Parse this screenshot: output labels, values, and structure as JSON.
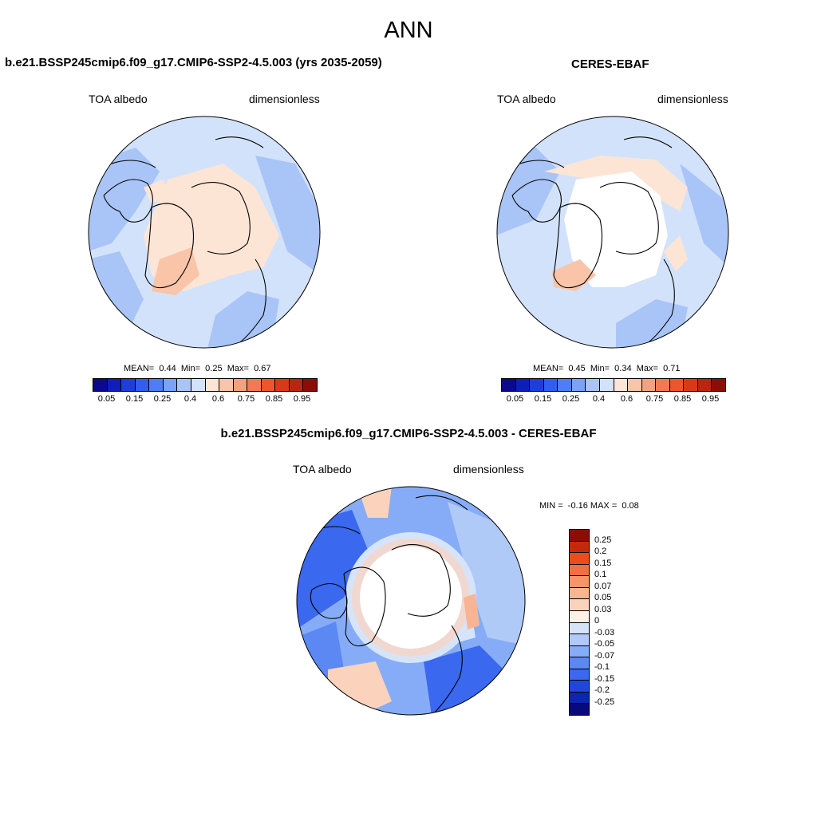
{
  "figure_title": "ANN",
  "panels": {
    "model": {
      "title": "b.e21.BSSP245cmip6.f09_g17.CMIP6-SSP2-4.5.003 (yrs 2035-2059)",
      "variable": "TOA albedo",
      "units": "dimensionless",
      "mean_label": "MEAN=",
      "mean": "0.44",
      "min_label": "Min=",
      "min": "0.25",
      "max_label": "Max=",
      "max": "0.67"
    },
    "obs": {
      "title": "CERES-EBAF",
      "variable": "TOA albedo",
      "units": "dimensionless",
      "mean_label": "MEAN=",
      "mean": "0.45",
      "min_label": "Min=",
      "min": "0.34",
      "max_label": "Max=",
      "max": "0.71"
    },
    "diff": {
      "title": "b.e21.BSSP245cmip6.f09_g17.CMIP6-SSP2-4.5.003 - CERES-EBAF",
      "variable": "TOA albedo",
      "units": "dimensionless",
      "min_label": "MIN =",
      "min": "-0.16",
      "max_label": "MAX =",
      "max": "0.08"
    }
  },
  "colorbar_top": {
    "colors": [
      "#0a0a8a",
      "#0c1fb8",
      "#1b3fd8",
      "#2f5ef0",
      "#4e7ef5",
      "#7aa2f5",
      "#a9c4f6",
      "#d2e2fa",
      "#fde5d6",
      "#f9c4a8",
      "#f5a17c",
      "#f27a52",
      "#ee5529",
      "#d93a16",
      "#b8260e",
      "#8a0e06"
    ],
    "tick_labels": [
      "0.05",
      "0.15",
      "0.25",
      "0.4",
      "0.6",
      "0.75",
      "0.85",
      "0.95"
    ]
  },
  "colorbar_diff": {
    "colors": [
      "#8a0e06",
      "#c5290c",
      "#ee4b1c",
      "#f26f3f",
      "#f5966a",
      "#f8b593",
      "#fbd3bd",
      "#fdf0e6",
      "#d6e4fa",
      "#b0caf8",
      "#87acf7",
      "#5b88f3",
      "#3a68ee",
      "#1f47dc",
      "#0c27ad",
      "#070a78"
    ],
    "tick_labels": [
      "0.25",
      "0.2",
      "0.15",
      "0.1",
      "0.07",
      "0.05",
      "0.03",
      "0",
      "-0.03",
      "-0.05",
      "-0.07",
      "-0.1",
      "-0.15",
      "-0.2",
      "-0.25"
    ]
  }
}
